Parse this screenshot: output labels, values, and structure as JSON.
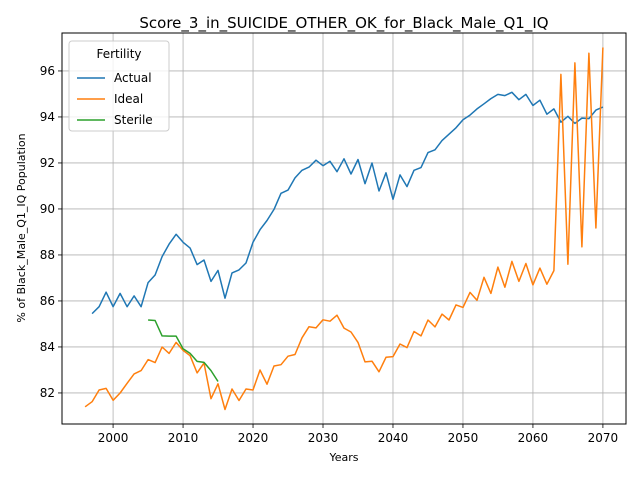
{
  "chart_data": {
    "type": "line",
    "title": "Score_3_in_SUICIDE_OTHER_OK_for_Black_Male_Q1_IQ",
    "xlabel": "Years",
    "ylabel": "% of Black_Male_Q1_IQ Population",
    "xlim": [
      1992.7,
      2073.3
    ],
    "ylim": [
      80.65,
      97.65
    ],
    "xticks": [
      2000,
      2010,
      2020,
      2030,
      2040,
      2050,
      2060,
      2070
    ],
    "yticks": [
      82,
      84,
      86,
      88,
      90,
      92,
      94,
      96
    ],
    "grid": true,
    "legend": {
      "title": "Fertility",
      "position": "upper-left"
    },
    "series": [
      {
        "name": "Actual",
        "color": "#1f77b4",
        "x": [
          1997,
          1998,
          1999,
          2000,
          2001,
          2002,
          2003,
          2004,
          2005,
          2006,
          2007,
          2008,
          2009,
          2010,
          2011,
          2012,
          2013,
          2014,
          2015,
          2016,
          2017,
          2018,
          2019,
          2020,
          2021,
          2022,
          2023,
          2024,
          2025,
          2026,
          2027,
          2028,
          2029,
          2030,
          2031,
          2032,
          2033,
          2034,
          2035,
          2036,
          2037,
          2038,
          2039,
          2040,
          2041,
          2042,
          2043,
          2044,
          2045,
          2046,
          2047,
          2048,
          2049,
          2050,
          2051,
          2052,
          2053,
          2054,
          2055,
          2056,
          2057,
          2058,
          2059,
          2060,
          2061,
          2062,
          2063,
          2064,
          2065,
          2066,
          2067,
          2068,
          2069,
          2070
        ],
        "values": [
          85.45,
          85.75,
          86.38,
          85.75,
          86.33,
          85.75,
          86.22,
          85.75,
          86.8,
          87.13,
          87.93,
          88.47,
          88.9,
          88.55,
          88.3,
          87.58,
          87.78,
          86.85,
          87.33,
          86.12,
          87.22,
          87.35,
          87.65,
          88.55,
          89.1,
          89.5,
          89.98,
          90.68,
          90.82,
          91.35,
          91.68,
          91.82,
          92.12,
          91.88,
          92.07,
          91.62,
          92.18,
          91.52,
          92.15,
          91.1,
          92.0,
          90.78,
          91.57,
          90.42,
          91.48,
          90.97,
          91.68,
          91.8,
          92.45,
          92.57,
          92.97,
          93.25,
          93.53,
          93.88,
          94.08,
          94.35,
          94.57,
          94.8,
          94.98,
          94.93,
          95.07,
          94.75,
          94.98,
          94.5,
          94.73,
          94.12,
          94.35,
          93.77,
          94.03,
          93.72,
          93.95,
          93.93,
          94.3,
          94.43
        ]
      },
      {
        "name": "Ideal",
        "color": "#ff7f0e",
        "x": [
          1996,
          1997,
          1998,
          1999,
          2000,
          2001,
          2002,
          2003,
          2004,
          2005,
          2006,
          2007,
          2008,
          2009,
          2010,
          2011,
          2012,
          2013,
          2014,
          2015,
          2016,
          2017,
          2018,
          2019,
          2020,
          2021,
          2022,
          2023,
          2024,
          2025,
          2026,
          2027,
          2028,
          2029,
          2030,
          2031,
          2032,
          2033,
          2034,
          2035,
          2036,
          2037,
          2038,
          2039,
          2040,
          2041,
          2042,
          2043,
          2044,
          2045,
          2046,
          2047,
          2048,
          2049,
          2050,
          2051,
          2052,
          2053,
          2054,
          2055,
          2056,
          2057,
          2058,
          2059,
          2060,
          2061,
          2062,
          2063,
          2064,
          2065,
          2066,
          2067,
          2068,
          2069,
          2070
        ],
        "values": [
          81.4,
          81.62,
          82.13,
          82.2,
          81.68,
          82.0,
          82.42,
          82.83,
          82.97,
          83.45,
          83.32,
          84.0,
          83.72,
          84.2,
          83.85,
          83.62,
          82.87,
          83.3,
          81.75,
          82.4,
          81.28,
          82.17,
          81.67,
          82.17,
          82.13,
          83.0,
          82.38,
          83.17,
          83.23,
          83.6,
          83.67,
          84.4,
          84.88,
          84.83,
          85.18,
          85.12,
          85.38,
          84.82,
          84.65,
          84.2,
          83.35,
          83.38,
          82.92,
          83.55,
          83.58,
          84.13,
          83.97,
          84.67,
          84.48,
          85.17,
          84.87,
          85.43,
          85.17,
          85.83,
          85.72,
          86.37,
          86.03,
          87.03,
          86.33,
          87.47,
          86.6,
          87.72,
          86.85,
          87.63,
          86.7,
          87.43,
          86.73,
          87.32,
          95.85,
          87.6,
          96.35,
          88.35,
          96.77,
          89.17,
          97.02
        ]
      },
      {
        "name": "Sterile",
        "color": "#2ca02c",
        "x": [
          2005,
          2006,
          2007,
          2008,
          2009,
          2010,
          2011,
          2012,
          2013,
          2014,
          2015
        ],
        "values": [
          85.17,
          85.15,
          84.48,
          84.47,
          84.47,
          83.92,
          83.72,
          83.37,
          83.33,
          82.97,
          82.5
        ]
      }
    ]
  }
}
